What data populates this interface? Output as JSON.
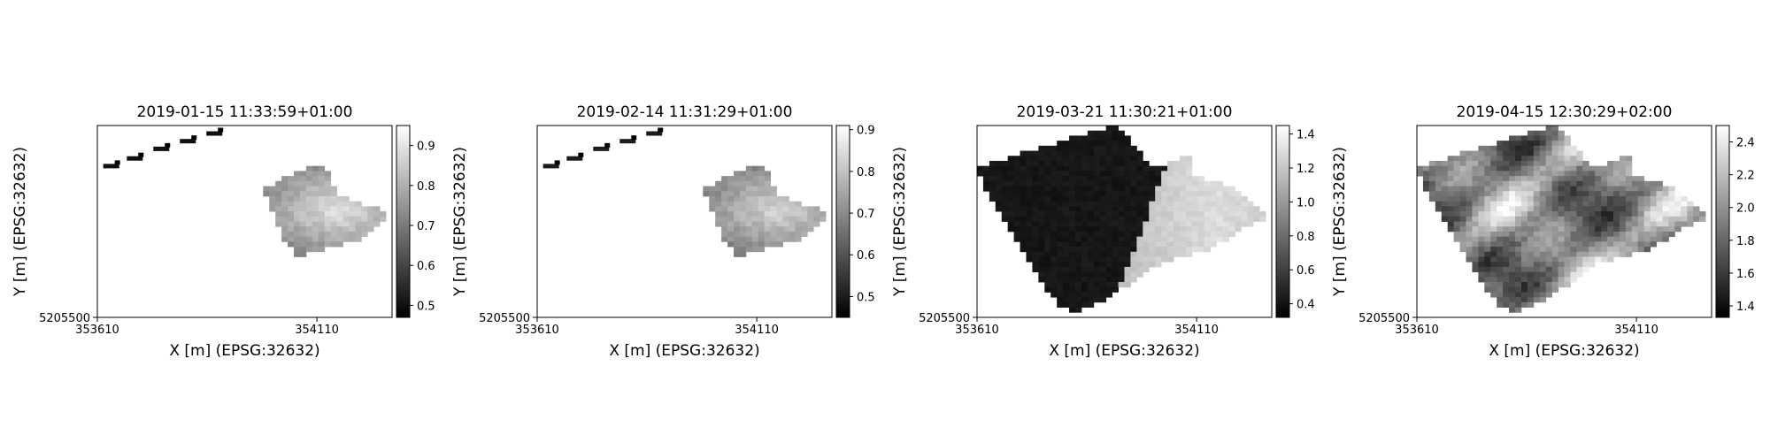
{
  "chart_data": [
    {
      "type": "heatmap",
      "title": "2019-01-15 11:33:59+01:00",
      "xlabel": "X [m] (EPSG:32632)",
      "ylabel": "Y [m] (EPSG:32632)",
      "x_ticks": [
        "353610",
        "354110"
      ],
      "y_ticks": [
        "5205500"
      ],
      "colorbar": {
        "min": 0.47,
        "max": 0.95,
        "ticks": [
          "0.5",
          "0.6",
          "0.7",
          "0.8",
          "0.9"
        ],
        "tick_values": [
          0.5,
          0.6,
          0.7,
          0.8,
          0.9
        ],
        "colormap": "gray"
      },
      "features": {
        "stripe": true,
        "polygon": "right-field",
        "field_mean": 0.72,
        "field_center": 0.9,
        "stripe_value": 0.5
      }
    },
    {
      "type": "heatmap",
      "title": "2019-02-14 11:31:29+01:00",
      "xlabel": "X [m] (EPSG:32632)",
      "ylabel": "Y [m] (EPSG:32632)",
      "x_ticks": [
        "353610",
        "354110"
      ],
      "y_ticks": [
        "5205500"
      ],
      "colorbar": {
        "min": 0.45,
        "max": 0.91,
        "ticks": [
          "0.5",
          "0.6",
          "0.7",
          "0.8",
          "0.9"
        ],
        "tick_values": [
          0.5,
          0.6,
          0.7,
          0.8,
          0.9
        ],
        "colormap": "gray"
      },
      "features": {
        "stripe": true,
        "polygon": "right-field",
        "field_mean": 0.72,
        "field_center": 0.84,
        "stripe_value": 0.5
      }
    },
    {
      "type": "heatmap",
      "title": "2019-03-21 11:30:21+01:00",
      "xlabel": "X [m] (EPSG:32632)",
      "ylabel": "Y [m] (EPSG:32632)",
      "x_ticks": [
        "353610",
        "354110"
      ],
      "y_ticks": [
        "5205500"
      ],
      "colorbar": {
        "min": 0.32,
        "max": 1.45,
        "ticks": [
          "0.4",
          "0.6",
          "0.8",
          "1.0",
          "1.2",
          "1.4"
        ],
        "tick_values": [
          0.4,
          0.6,
          0.8,
          1.0,
          1.2,
          1.4
        ],
        "colormap": "gray"
      },
      "features": {
        "stripe": false,
        "polygon": "full-field-split",
        "dark_value": 0.42,
        "bright_value": 1.3
      }
    },
    {
      "type": "heatmap",
      "title": "2019-04-15 12:30:29+02:00",
      "xlabel": "X [m] (EPSG:32632)",
      "ylabel": "Y [m] (EPSG:32632)",
      "x_ticks": [
        "353610",
        "354110"
      ],
      "y_ticks": [
        "5205500"
      ],
      "colorbar": {
        "min": 1.33,
        "max": 2.5,
        "ticks": [
          "1.4",
          "1.6",
          "1.8",
          "2.0",
          "2.2",
          "2.4"
        ],
        "tick_values": [
          1.4,
          1.6,
          1.8,
          2.0,
          2.2,
          2.4
        ],
        "colormap": "gray"
      },
      "features": {
        "stripe": false,
        "polygon": "full-field-textured",
        "mean_value": 1.95
      }
    }
  ]
}
